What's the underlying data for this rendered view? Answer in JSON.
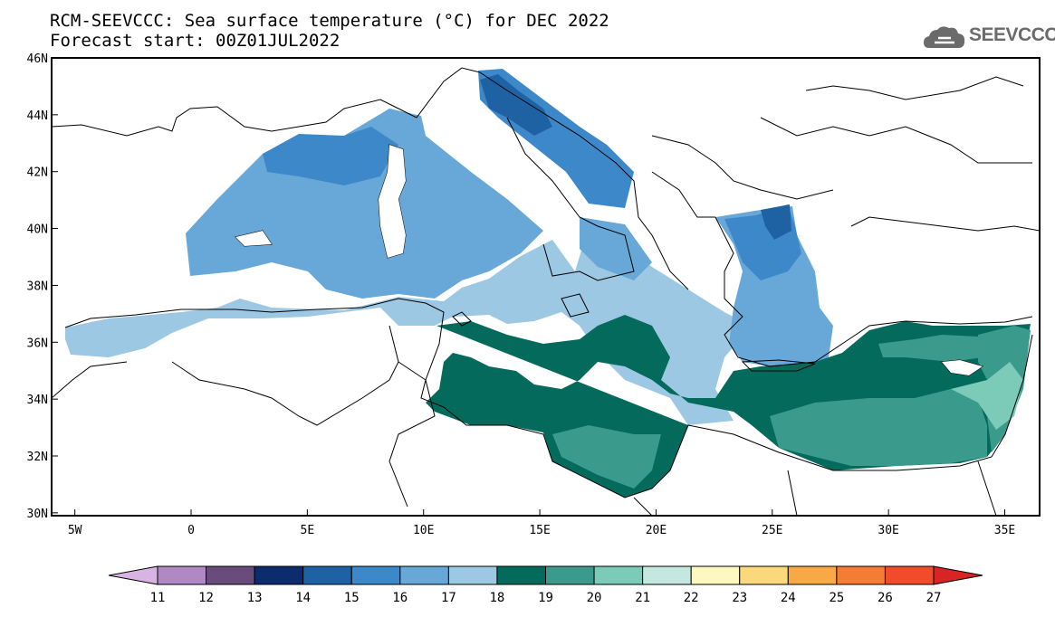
{
  "title_line1": "RCM-SEEVCCC: Sea surface temperature (°C) for DEC 2022",
  "title_line2": "Forecast start: 00Z01JUL2022",
  "logo_text": "SEEVCCC",
  "logo_icon": "cloud-icon",
  "map": {
    "lon_range": [
      -6,
      36.5
    ],
    "lat_range": [
      29.9,
      46
    ],
    "lon_ticks": [
      {
        "value": -5,
        "label": "5W"
      },
      {
        "value": 0,
        "label": "0"
      },
      {
        "value": 5,
        "label": "5E"
      },
      {
        "value": 10,
        "label": "10E"
      },
      {
        "value": 15,
        "label": "15E"
      },
      {
        "value": 20,
        "label": "20E"
      },
      {
        "value": 25,
        "label": "25E"
      },
      {
        "value": 30,
        "label": "30E"
      },
      {
        "value": 35,
        "label": "35E"
      }
    ],
    "lat_ticks": [
      {
        "value": 30,
        "label": "30N"
      },
      {
        "value": 32,
        "label": "32N"
      },
      {
        "value": 34,
        "label": "34N"
      },
      {
        "value": 36,
        "label": "36N"
      },
      {
        "value": 38,
        "label": "38N"
      },
      {
        "value": 40,
        "label": "40N"
      },
      {
        "value": 42,
        "label": "42N"
      },
      {
        "value": 44,
        "label": "44N"
      },
      {
        "value": 46,
        "label": "46N"
      }
    ]
  },
  "colorbar": {
    "labels": [
      "11",
      "12",
      "13",
      "14",
      "15",
      "16",
      "17",
      "18",
      "19",
      "20",
      "21",
      "22",
      "23",
      "24",
      "25",
      "26",
      "27"
    ],
    "colors": [
      "#d8b4e2",
      "#b088c4",
      "#6a4c7c",
      "#0c2c6e",
      "#1e62a4",
      "#3c88c8",
      "#68a8d8",
      "#9cc8e4",
      "#036a5c",
      "#3a9a8c",
      "#7ccab8",
      "#c4e8e0",
      "#fcf8c0",
      "#fcd87c",
      "#f8a844",
      "#f47c34",
      "#f04c2c",
      "#d82424"
    ]
  },
  "sst_colors": {
    "c14": "#1e62a4",
    "c15": "#3c88c8",
    "c16": "#68a8d8",
    "c17": "#9cc8e4",
    "c18": "#036a5c",
    "c19": "#3a9a8c",
    "c20": "#7ccab8"
  }
}
